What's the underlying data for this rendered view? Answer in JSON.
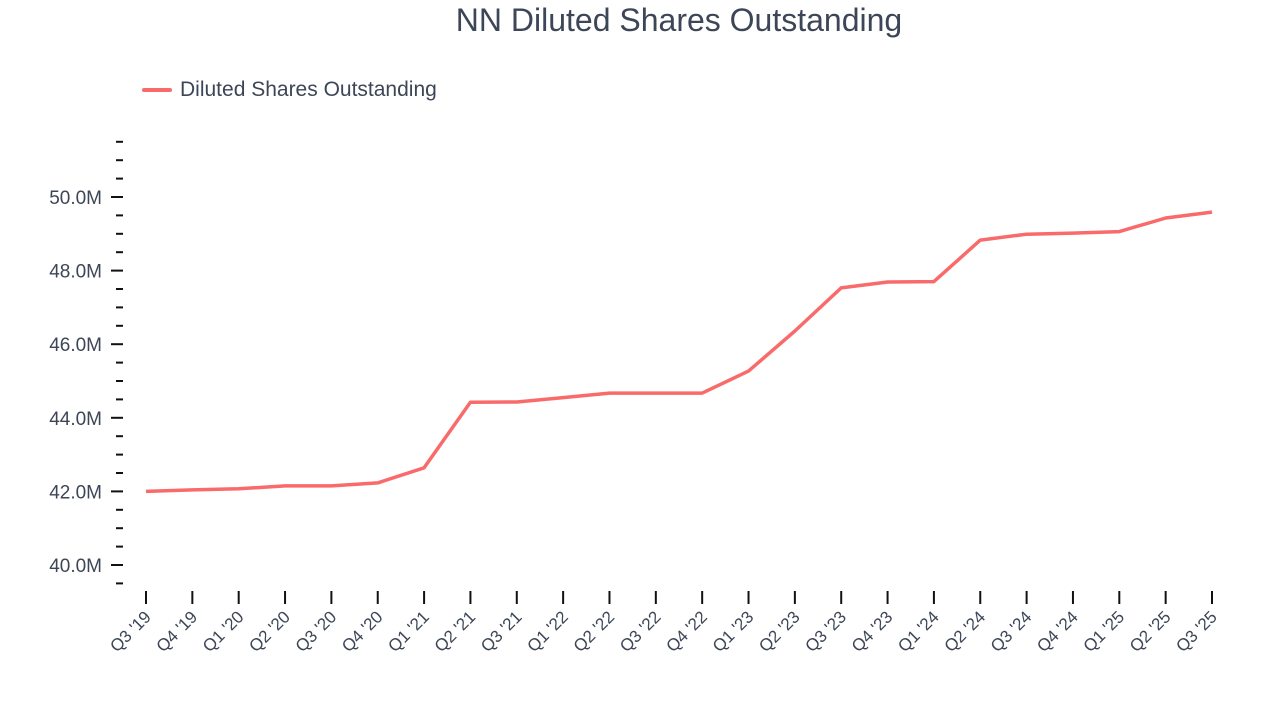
{
  "chart_data": {
    "type": "line",
    "title": "NN Diluted Shares Outstanding",
    "xlabel": "",
    "ylabel": "",
    "ylim": [
      39.4,
      51.5
    ],
    "grid": false,
    "legend_position": "top-left",
    "yticks": [
      40.0,
      42.0,
      44.0,
      46.0,
      48.0,
      50.0
    ],
    "ytick_labels": [
      "40.0M",
      "42.0M",
      "44.0M",
      "46.0M",
      "48.0M",
      "50.0M"
    ],
    "categories": [
      "Q3 '19",
      "Q4 '19",
      "Q1 '20",
      "Q2 '20",
      "Q3 '20",
      "Q4 '20",
      "Q1 '21",
      "Q2 '21",
      "Q3 '21",
      "Q1 '22",
      "Q2 '22",
      "Q3 '22",
      "Q4 '22",
      "Q1 '23",
      "Q2 '23",
      "Q3 '23",
      "Q4 '23",
      "Q1 '24",
      "Q2 '24",
      "Q3 '24",
      "Q4 '24",
      "Q1 '25",
      "Q2 '25",
      "Q3 '25"
    ],
    "series": [
      {
        "name": "Diluted Shares Outstanding",
        "color": "#f96b6b",
        "unit": "M",
        "values": [
          42.0,
          42.04,
          42.07,
          42.15,
          42.15,
          42.23,
          42.64,
          44.42,
          44.43,
          44.55,
          44.67,
          44.67,
          44.67,
          45.27,
          46.36,
          47.53,
          47.69,
          47.7,
          48.83,
          48.99,
          49.02,
          49.06,
          49.43,
          49.59
        ]
      }
    ]
  },
  "header": {
    "title": "NN Diluted Shares Outstanding"
  },
  "legend": {
    "label": "Diluted Shares Outstanding",
    "color": "#f96b6b"
  }
}
